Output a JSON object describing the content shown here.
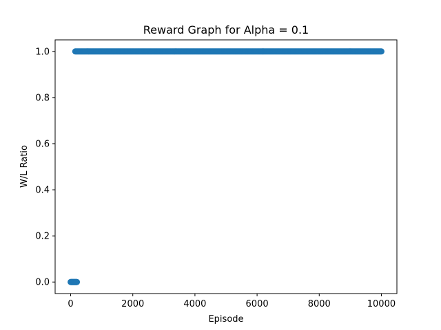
{
  "chart_data": {
    "type": "scatter",
    "title": "Reward Graph for Alpha = 0.1",
    "xlabel": "Episode",
    "ylabel": "W/L Ratio",
    "xlim": [
      -500,
      10500
    ],
    "ylim": [
      -0.05,
      1.05
    ],
    "xticks": [
      0,
      2000,
      4000,
      6000,
      8000,
      10000
    ],
    "xtick_labels": [
      "0",
      "2000",
      "4000",
      "6000",
      "8000",
      "10000"
    ],
    "yticks": [
      0.0,
      0.2,
      0.4,
      0.6,
      0.8,
      1.0
    ],
    "ytick_labels": [
      "0.0",
      "0.2",
      "0.4",
      "0.6",
      "0.8",
      "1.0"
    ],
    "grid": false,
    "series": [
      {
        "color": "#1f77b4",
        "segments": [
          {
            "x_start": 0,
            "x_end": 200,
            "y": 0.0
          },
          {
            "x_start": 150,
            "x_end": 10000,
            "y": 1.0
          }
        ]
      }
    ]
  }
}
